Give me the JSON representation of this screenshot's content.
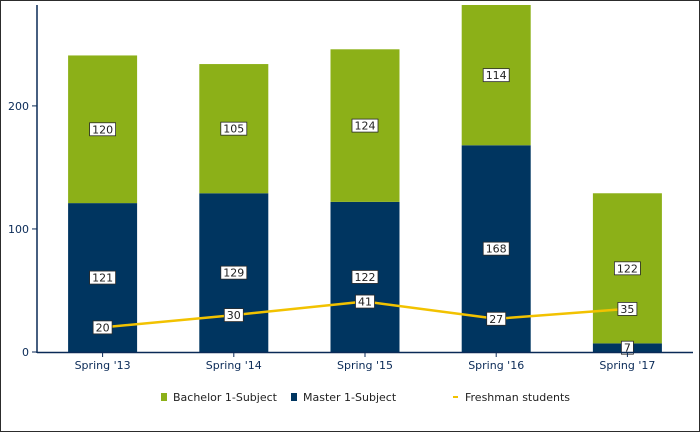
{
  "chart_data": {
    "type": "bar",
    "stacked": true,
    "categories": [
      "Spring '13",
      "Spring '14",
      "Spring '15",
      "Spring '16",
      "Spring '17"
    ],
    "series": [
      {
        "name": "Master 1-Subject",
        "type": "bar",
        "color": "#003560",
        "values": [
          121,
          129,
          122,
          168,
          7
        ]
      },
      {
        "name": "Bachelor 1-Subject",
        "type": "bar",
        "color": "#8cb018",
        "values": [
          120,
          105,
          124,
          114,
          122
        ]
      },
      {
        "name": "Freshman students",
        "type": "line",
        "color": "#f2c200",
        "values": [
          20,
          30,
          41,
          27,
          35
        ]
      }
    ],
    "legend_order": [
      "Bachelor 1-Subject",
      "Master 1-Subject",
      "Freshman students"
    ],
    "ylim": [
      0,
      282
    ],
    "yticks": [
      0,
      100,
      200
    ],
    "title": "",
    "xlabel": "",
    "ylabel": "",
    "legend_position": "bottom",
    "grid": false
  }
}
